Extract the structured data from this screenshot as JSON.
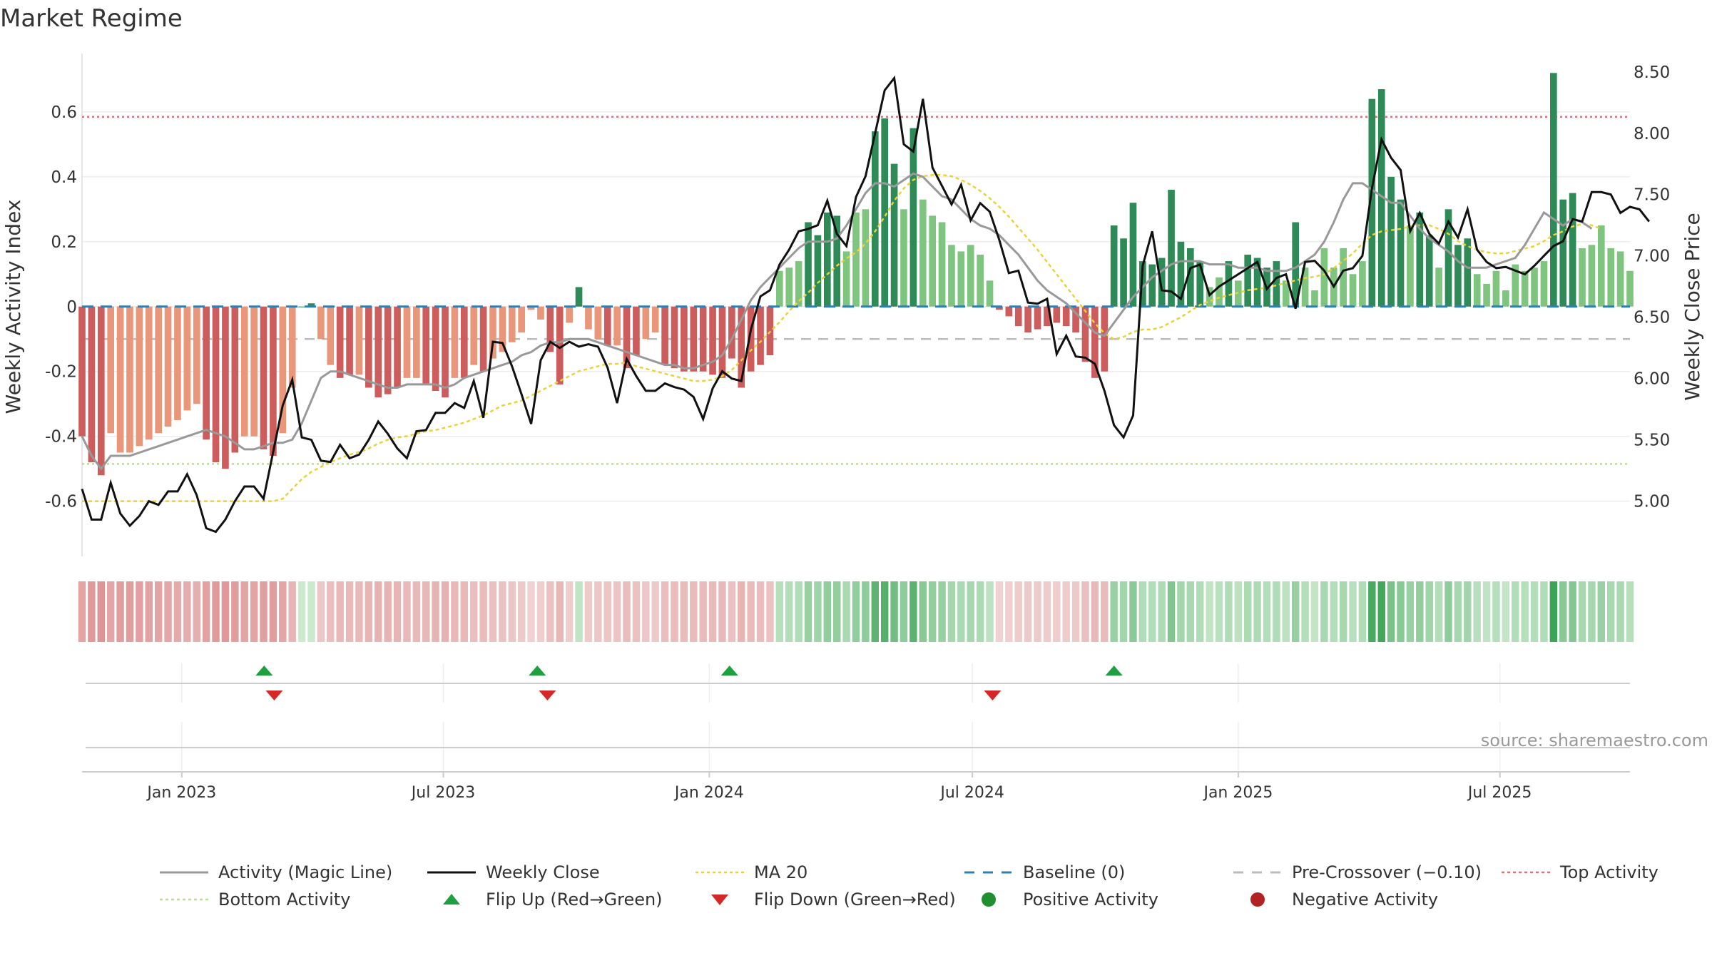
{
  "title": "Market Regime",
  "source_note": "source: sharemaestro.com",
  "colors": {
    "activity_line": "#999999",
    "close_line": "#111111",
    "ma_line": "#e8d33a",
    "baseline": "#2f7fb5",
    "pre_crossover": "#bbbbbb",
    "top_line": "#e0707a",
    "bottom_line": "#b7e08a",
    "pos_strong": "#2e8b57",
    "pos_light": "#7fc47f",
    "neg_strong": "#cd5c5c",
    "neg_light": "#e9967a",
    "flip_up": "#1fa040",
    "flip_down": "#d62728",
    "pos_dot": "#1f8f2f",
    "neg_dot": "#b22222"
  },
  "chart_data": {
    "type": "bar",
    "title": "Market Regime",
    "xlabel": "",
    "ylabel": "Weekly Activity Index",
    "y2label": "Weekly Close Price",
    "ylim": [
      -0.77,
      0.78
    ],
    "y2lim": [
      4.55,
      8.65
    ],
    "yticks": [
      "-0.6",
      "-0.4",
      "-0.2",
      "0",
      "0.2",
      "0.4",
      "0.6"
    ],
    "y2ticks": [
      "5.00",
      "5.50",
      "6.00",
      "6.50",
      "7.00",
      "7.50",
      "8.00",
      "8.50"
    ],
    "xticks": [
      "Jan 2023",
      "Jul 2023",
      "Jan 2024",
      "Jul 2024",
      "Jan 2025",
      "Jul 2025"
    ],
    "x_start": "2022-10-24",
    "x_end": "2025-09-29",
    "reference_lines": {
      "top": 0.585,
      "bottom": -0.485,
      "baseline": 0,
      "pre_crossover": -0.1
    },
    "weekly": {
      "activity": [
        -0.4,
        -0.46,
        -0.5,
        -0.46,
        -0.46,
        -0.46,
        -0.45,
        -0.44,
        -0.43,
        -0.42,
        -0.41,
        -0.4,
        -0.39,
        -0.38,
        -0.39,
        -0.4,
        -0.42,
        -0.44,
        -0.44,
        -0.43,
        -0.42,
        -0.42,
        -0.41,
        -0.36,
        -0.29,
        -0.22,
        -0.2,
        -0.2,
        -0.21,
        -0.22,
        -0.23,
        -0.24,
        -0.25,
        -0.25,
        -0.24,
        -0.24,
        -0.24,
        -0.24,
        -0.25,
        -0.24,
        -0.22,
        -0.21,
        -0.2,
        -0.19,
        -0.18,
        -0.17,
        -0.15,
        -0.14,
        -0.12,
        -0.11,
        -0.11,
        -0.1,
        -0.1,
        -0.1,
        -0.11,
        -0.12,
        -0.13,
        -0.14,
        -0.15,
        -0.16,
        -0.17,
        -0.18,
        -0.18,
        -0.19,
        -0.19,
        -0.18,
        -0.17,
        -0.15,
        -0.1,
        -0.04,
        0.02,
        0.06,
        0.09,
        0.12,
        0.15,
        0.18,
        0.2,
        0.2,
        0.2,
        0.21,
        0.25,
        0.3,
        0.35,
        0.38,
        0.38,
        0.37,
        0.39,
        0.41,
        0.4,
        0.37,
        0.34,
        0.33,
        0.3,
        0.27,
        0.25,
        0.24,
        0.22,
        0.19,
        0.16,
        0.12,
        0.08,
        0.05,
        0.03,
        0.01,
        -0.02,
        -0.05,
        -0.08,
        -0.09,
        -0.05,
        -0.01,
        0.03,
        0.06,
        0.09,
        0.11,
        0.13,
        0.14,
        0.14,
        0.14,
        0.13,
        0.13,
        0.13,
        0.12,
        0.12,
        0.12,
        0.11,
        0.11,
        0.11,
        0.12,
        0.14,
        0.16,
        0.2,
        0.26,
        0.33,
        0.38,
        0.38,
        0.36,
        0.34,
        0.32,
        0.32,
        0.28,
        0.24,
        0.21,
        0.19,
        0.17,
        0.14,
        0.12,
        0.12,
        0.12,
        0.13,
        0.14,
        0.15,
        0.19,
        0.24,
        0.29,
        0.27,
        0.25,
        0.27,
        0.26,
        0.24
      ],
      "close": [
        5.1,
        4.85,
        4.85,
        5.15,
        4.9,
        4.8,
        4.88,
        5.0,
        4.97,
        5.08,
        5.08,
        5.22,
        5.05,
        4.78,
        4.75,
        4.85,
        5.0,
        5.12,
        5.12,
        5.02,
        5.4,
        5.78,
        5.99,
        5.52,
        5.5,
        5.33,
        5.32,
        5.46,
        5.35,
        5.38,
        5.5,
        5.65,
        5.55,
        5.43,
        5.35,
        5.57,
        5.58,
        5.72,
        5.72,
        5.8,
        5.76,
        5.98,
        5.68,
        6.3,
        6.29,
        6.1,
        5.87,
        5.63,
        6.15,
        6.3,
        6.25,
        6.3,
        6.26,
        6.28,
        6.26,
        6.09,
        5.8,
        6.16,
        6.02,
        5.9,
        5.9,
        5.96,
        5.93,
        5.91,
        5.85,
        5.67,
        5.92,
        6.06,
        6.0,
        5.98,
        6.4,
        6.67,
        6.72,
        6.93,
        7.05,
        7.2,
        7.22,
        7.25,
        7.45,
        7.18,
        7.08,
        7.48,
        7.65,
        8.0,
        8.35,
        8.45,
        7.91,
        7.85,
        8.28,
        7.72,
        7.57,
        7.42,
        7.58,
        7.29,
        7.43,
        7.36,
        7.13,
        6.86,
        6.88,
        6.62,
        6.61,
        6.65,
        6.2,
        6.35,
        6.18,
        6.17,
        6.12,
        5.9,
        5.62,
        5.52,
        5.7,
        6.92,
        7.2,
        6.72,
        6.71,
        6.65,
        6.9,
        6.93,
        6.68,
        6.75,
        6.8,
        6.85,
        6.9,
        6.95,
        6.73,
        6.82,
        6.85,
        6.57,
        6.95,
        6.96,
        6.88,
        6.75,
        6.88,
        6.9,
        7.0,
        7.55,
        7.95,
        7.8,
        7.7,
        7.2,
        7.35,
        7.18,
        7.1,
        7.28,
        7.15,
        7.38,
        7.05,
        6.95,
        6.9,
        6.91,
        6.88,
        6.85,
        6.92,
        7.0,
        7.08,
        7.12,
        7.3,
        7.28,
        7.52,
        7.52,
        7.5,
        7.35,
        7.4,
        7.38,
        7.28
      ],
      "ma20": [
        5.0,
        5.0,
        5.0,
        5.0,
        5.0,
        5.0,
        5.0,
        5.0,
        5.0,
        5.0,
        5.0,
        5.0,
        5.0,
        5.0,
        5.0,
        5.0,
        5.0,
        5.0,
        5.0,
        5.0,
        5.0,
        5.02,
        5.1,
        5.18,
        5.24,
        5.28,
        5.32,
        5.35,
        5.38,
        5.4,
        5.43,
        5.47,
        5.5,
        5.52,
        5.53,
        5.55,
        5.57,
        5.58,
        5.6,
        5.62,
        5.64,
        5.67,
        5.7,
        5.74,
        5.78,
        5.8,
        5.82,
        5.86,
        5.9,
        5.94,
        5.98,
        6.02,
        6.06,
        6.08,
        6.1,
        6.12,
        6.12,
        6.13,
        6.1,
        6.08,
        6.06,
        6.04,
        6.02,
        6.0,
        5.98,
        5.98,
        5.99,
        6.02,
        6.07,
        6.15,
        6.23,
        6.3,
        6.38,
        6.46,
        6.55,
        6.63,
        6.7,
        6.78,
        6.85,
        6.92,
        6.98,
        7.03,
        7.1,
        7.2,
        7.32,
        7.45,
        7.55,
        7.62,
        7.65,
        7.66,
        7.66,
        7.65,
        7.62,
        7.58,
        7.53,
        7.47,
        7.4,
        7.32,
        7.23,
        7.14,
        7.05,
        6.95,
        6.85,
        6.75,
        6.65,
        6.55,
        6.45,
        6.37,
        6.32,
        6.34,
        6.38,
        6.4,
        6.4,
        6.42,
        6.46,
        6.5,
        6.55,
        6.6,
        6.63,
        6.66,
        6.68,
        6.7,
        6.72,
        6.73,
        6.74,
        6.76,
        6.78,
        6.8,
        6.82,
        6.83,
        6.85,
        6.9,
        6.96,
        7.02,
        7.1,
        7.17,
        7.2,
        7.21,
        7.22,
        7.24,
        7.25,
        7.25,
        7.22,
        7.18,
        7.12,
        7.08,
        7.05,
        7.03,
        7.02,
        7.02,
        7.04,
        7.06,
        7.08,
        7.12,
        7.17,
        7.2,
        7.24,
        7.26,
        7.25,
        7.22
      ],
      "bars": [
        -0.4,
        -0.48,
        -0.52,
        -0.39,
        -0.45,
        -0.45,
        -0.43,
        -0.41,
        -0.39,
        -0.37,
        -0.35,
        -0.32,
        -0.3,
        -0.41,
        -0.48,
        -0.5,
        -0.45,
        -0.4,
        -0.4,
        -0.44,
        -0.46,
        -0.39,
        -0.25,
        0.0,
        0.01,
        -0.1,
        -0.18,
        -0.22,
        -0.21,
        -0.21,
        -0.25,
        -0.28,
        -0.27,
        -0.25,
        -0.22,
        -0.22,
        -0.24,
        -0.26,
        -0.28,
        -0.22,
        -0.22,
        -0.18,
        -0.2,
        -0.16,
        -0.14,
        -0.11,
        -0.08,
        -0.01,
        -0.04,
        -0.14,
        -0.24,
        -0.05,
        0.06,
        -0.07,
        -0.1,
        -0.12,
        -0.12,
        -0.19,
        -0.15,
        -0.1,
        -0.08,
        -0.18,
        -0.19,
        -0.2,
        -0.2,
        -0.2,
        -0.21,
        -0.22,
        -0.16,
        -0.25,
        -0.2,
        -0.18,
        -0.15,
        0.11,
        0.12,
        0.14,
        0.26,
        0.22,
        0.29,
        0.28,
        0.17,
        0.29,
        0.3,
        0.54,
        0.58,
        0.44,
        0.3,
        0.55,
        0.33,
        0.28,
        0.26,
        0.19,
        0.17,
        0.19,
        0.16,
        0.08,
        -0.01,
        -0.03,
        -0.06,
        -0.08,
        -0.07,
        -0.06,
        -0.05,
        -0.06,
        -0.08,
        -0.17,
        -0.22,
        -0.2,
        0.25,
        0.21,
        0.32,
        0.14,
        0.13,
        0.15,
        0.36,
        0.2,
        0.18,
        0.14,
        0.06,
        0.09,
        0.14,
        0.08,
        0.16,
        0.15,
        0.12,
        0.14,
        0.08,
        0.26,
        0.12,
        0.05,
        0.18,
        0.12,
        0.18,
        0.1,
        0.14,
        0.64,
        0.67,
        0.4,
        0.33,
        0.25,
        0.29,
        0.22,
        0.12,
        0.3,
        0.19,
        0.21,
        0.1,
        0.07,
        0.11,
        0.05,
        0.13,
        0.11,
        0.12,
        0.14,
        0.72,
        0.33,
        0.35,
        0.18,
        0.19,
        0.25,
        0.18,
        0.17,
        0.11
      ]
    },
    "flips_up": [
      "2023-02-27",
      "2023-09-04",
      "2024-01-15",
      "2024-10-07"
    ],
    "flips_down": [
      "2023-03-06",
      "2023-09-11",
      "2024-07-15"
    ],
    "legend": [
      {
        "label": "Activity (Magic Line)",
        "kind": "line",
        "key": "activity_line"
      },
      {
        "label": "Weekly Close",
        "kind": "line",
        "key": "close_line"
      },
      {
        "label": "MA 20",
        "kind": "dotted",
        "key": "ma_line"
      },
      {
        "label": "Baseline (0)",
        "kind": "dashed",
        "key": "baseline"
      },
      {
        "label": "Pre-Crossover (−0.10)",
        "kind": "dashed",
        "key": "pre_crossover"
      },
      {
        "label": "Top Activity",
        "kind": "dotted",
        "key": "top_line"
      },
      {
        "label": "Bottom Activity",
        "kind": "dotted",
        "key": "bottom_line"
      },
      {
        "label": "Flip Up (Red→Green)",
        "kind": "tri-up",
        "key": "flip_up"
      },
      {
        "label": "Flip Down (Green→Red)",
        "kind": "tri-down",
        "key": "flip_down"
      },
      {
        "label": "Positive Activity",
        "kind": "dot",
        "key": "pos_dot"
      },
      {
        "label": "Negative Activity",
        "kind": "dot",
        "key": "neg_dot"
      }
    ]
  }
}
